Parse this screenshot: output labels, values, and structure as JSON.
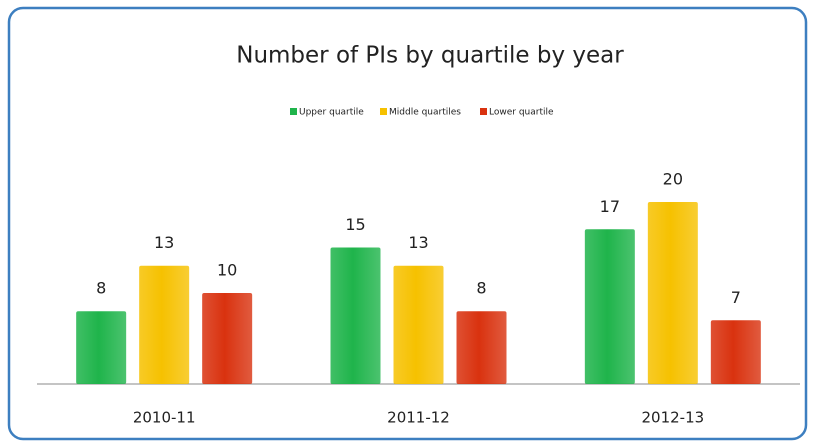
{
  "chart_data": {
    "type": "bar",
    "title": "Number of PIs by quartile by year",
    "categories": [
      "2010-11",
      "2011-12",
      "2012-13"
    ],
    "series": [
      {
        "name": "Upper quartile",
        "color": "#1fb44b",
        "values": [
          8,
          15,
          17
        ]
      },
      {
        "name": "Middle quartiles",
        "color": "#f6c100",
        "values": [
          13,
          13,
          20
        ]
      },
      {
        "name": "Lower quartile",
        "color": "#d9320f",
        "values": [
          10,
          8,
          7
        ]
      }
    ],
    "legend": "top"
  }
}
